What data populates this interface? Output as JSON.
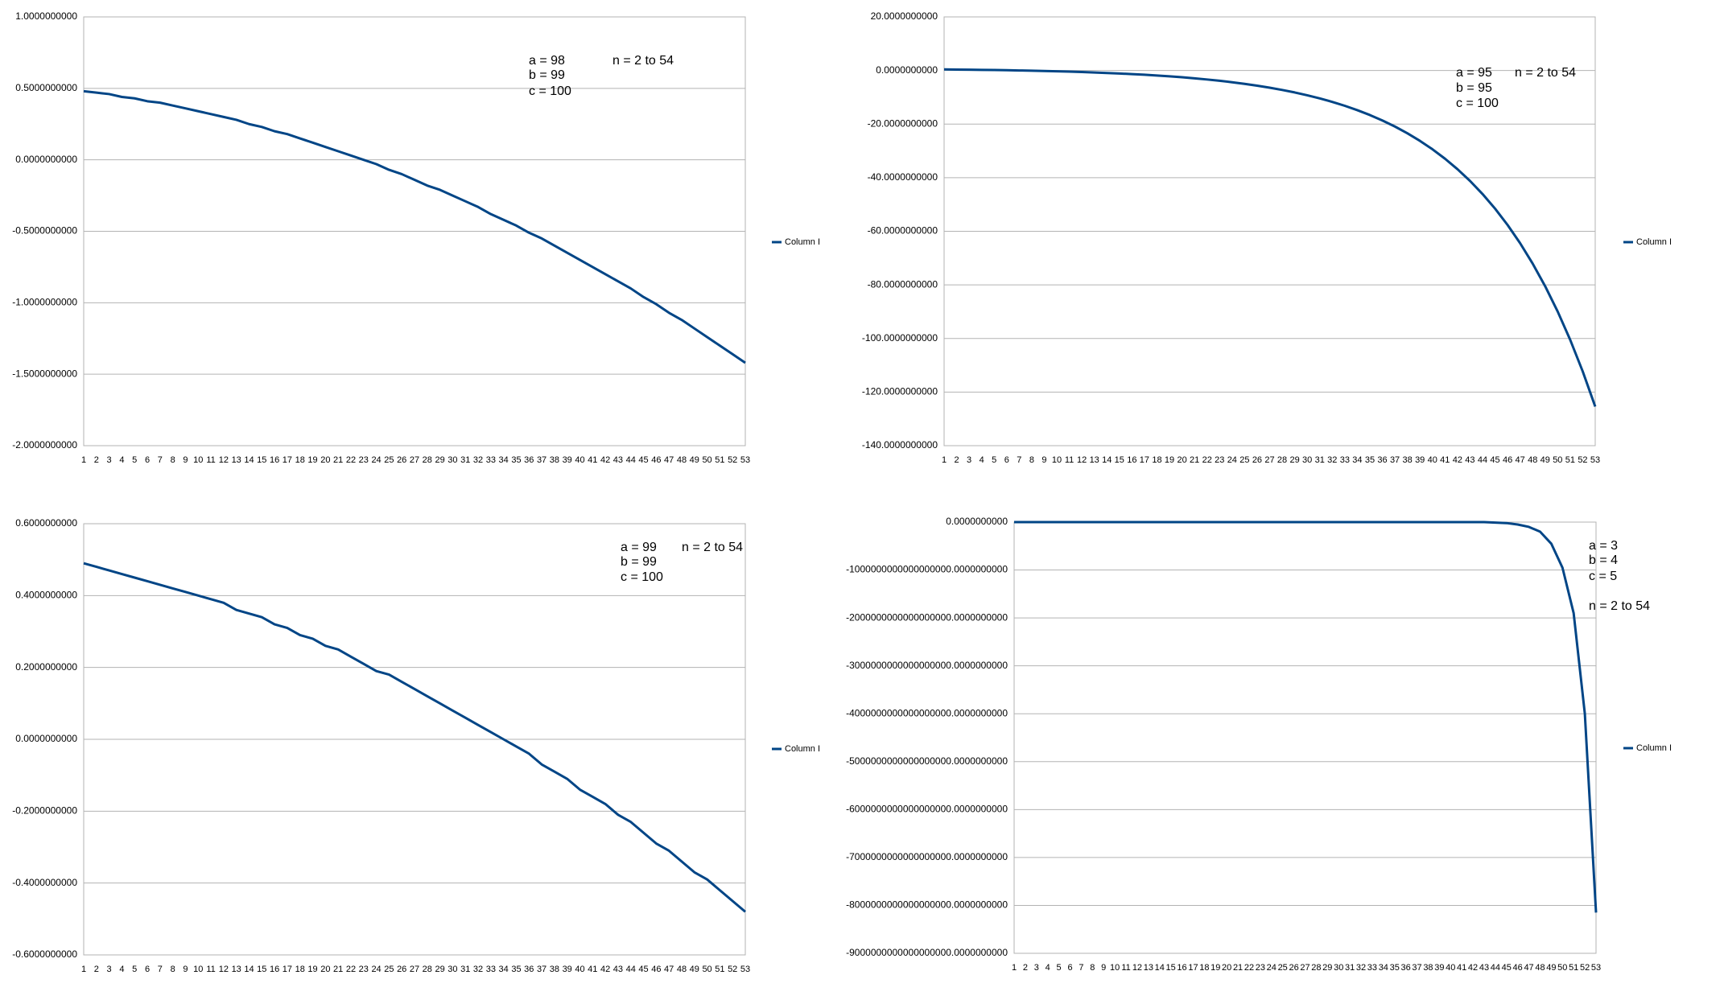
{
  "chart_data": [
    {
      "type": "line",
      "grid": true,
      "legend": "right",
      "annotations": [
        "a = 98",
        "n = 2 to 54",
        "b = 99",
        "c = 100"
      ],
      "categories": [
        1,
        2,
        3,
        4,
        5,
        6,
        7,
        8,
        9,
        10,
        11,
        12,
        13,
        14,
        15,
        16,
        17,
        18,
        19,
        20,
        21,
        22,
        23,
        24,
        25,
        26,
        27,
        28,
        29,
        30,
        31,
        32,
        33,
        34,
        35,
        36,
        37,
        38,
        39,
        40,
        41,
        42,
        43,
        44,
        45,
        46,
        47,
        48,
        49,
        50,
        51,
        52,
        53
      ],
      "ylim": [
        -2,
        1
      ],
      "yticks": [
        {
          "value": -2,
          "label": "-2.0000000000"
        },
        {
          "value": -1.5,
          "label": "-1.5000000000"
        },
        {
          "value": -1,
          "label": "-1.0000000000"
        },
        {
          "value": -0.5,
          "label": "-0.5000000000"
        },
        {
          "value": 0,
          "label": "0.0000000000"
        },
        {
          "value": 0.5,
          "label": "0.5000000000"
        },
        {
          "value": 1,
          "label": "1.0000000000"
        }
      ],
      "series": [
        {
          "name": "Column I",
          "color": "#004586",
          "values": [
            0.48,
            0.47,
            0.46,
            0.44,
            0.43,
            0.41,
            0.4,
            0.38,
            0.36,
            0.34,
            0.32,
            0.3,
            0.28,
            0.25,
            0.23,
            0.2,
            0.18,
            0.15,
            0.12,
            0.09,
            0.06,
            0.03,
            0.0,
            -0.03,
            -0.07,
            -0.1,
            -0.14,
            -0.18,
            -0.21,
            -0.25,
            -0.29,
            -0.33,
            -0.38,
            -0.42,
            -0.46,
            -0.51,
            -0.55,
            -0.6,
            -0.65,
            -0.7,
            -0.75,
            -0.8,
            -0.85,
            -0.9,
            -0.96,
            -1.01,
            -1.07,
            -1.12,
            -1.18,
            -1.24,
            -1.3,
            -1.36,
            -1.42
          ]
        }
      ]
    },
    {
      "type": "line",
      "grid": true,
      "legend": "right",
      "annotations": [
        "a = 95",
        "n = 2 to 54",
        "b = 95",
        "c = 100"
      ],
      "categories": [
        1,
        2,
        3,
        4,
        5,
        6,
        7,
        8,
        9,
        10,
        11,
        12,
        13,
        14,
        15,
        16,
        17,
        18,
        19,
        20,
        21,
        22,
        23,
        24,
        25,
        26,
        27,
        28,
        29,
        30,
        31,
        32,
        33,
        34,
        35,
        36,
        37,
        38,
        39,
        40,
        41,
        42,
        43,
        44,
        45,
        46,
        47,
        48,
        49,
        50,
        51,
        52,
        53
      ],
      "ylim": [
        -140,
        20
      ],
      "yticks": [
        {
          "value": -140,
          "label": "-140.0000000000"
        },
        {
          "value": -120,
          "label": "-120.0000000000"
        },
        {
          "value": -100,
          "label": "-100.0000000000"
        },
        {
          "value": -80,
          "label": "-80.0000000000"
        },
        {
          "value": -60,
          "label": "-60.0000000000"
        },
        {
          "value": -40,
          "label": "-40.0000000000"
        },
        {
          "value": -20,
          "label": "-20.0000000000"
        },
        {
          "value": 0,
          "label": "0.0000000000"
        },
        {
          "value": 20,
          "label": "20.0000000000"
        }
      ],
      "series": [
        {
          "name": "Column I",
          "color": "#004586",
          "values": [
            0.4,
            0.35,
            0.3,
            0.24,
            0.17,
            0.1,
            0.01,
            -0.08,
            -0.18,
            -0.3,
            -0.43,
            -0.57,
            -0.74,
            -0.92,
            -1.12,
            -1.34,
            -1.59,
            -1.87,
            -2.18,
            -2.53,
            -2.92,
            -3.36,
            -3.84,
            -4.38,
            -4.99,
            -5.66,
            -6.42,
            -7.26,
            -8.19,
            -9.24,
            -10.41,
            -11.72,
            -13.17,
            -14.8,
            -16.61,
            -18.64,
            -20.9,
            -23.43,
            -26.25,
            -29.39,
            -32.91,
            -36.83,
            -41.2,
            -46.09,
            -51.54,
            -57.63,
            -64.43,
            -72.02,
            -80.48,
            -89.93,
            -100.49,
            -112.27,
            -125.41
          ]
        }
      ]
    },
    {
      "type": "line",
      "grid": true,
      "legend": "right",
      "annotations": [
        "a = 99",
        "n = 2 to 54",
        "b = 99",
        "c = 100"
      ],
      "categories": [
        1,
        2,
        3,
        4,
        5,
        6,
        7,
        8,
        9,
        10,
        11,
        12,
        13,
        14,
        15,
        16,
        17,
        18,
        19,
        20,
        21,
        22,
        23,
        24,
        25,
        26,
        27,
        28,
        29,
        30,
        31,
        32,
        33,
        34,
        35,
        36,
        37,
        38,
        39,
        40,
        41,
        42,
        43,
        44,
        45,
        46,
        47,
        48,
        49,
        50,
        51,
        52,
        53
      ],
      "ylim": [
        -0.6,
        0.6
      ],
      "yticks": [
        {
          "value": -0.6,
          "label": "-0.6000000000"
        },
        {
          "value": -0.4,
          "label": "-0.4000000000"
        },
        {
          "value": -0.2,
          "label": "-0.2000000000"
        },
        {
          "value": 0,
          "label": "0.0000000000"
        },
        {
          "value": 0.2,
          "label": "0.2000000000"
        },
        {
          "value": 0.4,
          "label": "0.4000000000"
        },
        {
          "value": 0.6,
          "label": "0.6000000000"
        }
      ],
      "series": [
        {
          "name": "Column I",
          "color": "#004586",
          "values": [
            0.49,
            0.48,
            0.47,
            0.46,
            0.45,
            0.44,
            0.43,
            0.42,
            0.41,
            0.4,
            0.39,
            0.38,
            0.36,
            0.35,
            0.34,
            0.32,
            0.31,
            0.29,
            0.28,
            0.26,
            0.25,
            0.23,
            0.21,
            0.19,
            0.18,
            0.16,
            0.14,
            0.12,
            0.1,
            0.08,
            0.06,
            0.04,
            0.02,
            0.0,
            -0.02,
            -0.04,
            -0.07,
            -0.09,
            -0.11,
            -0.14,
            -0.16,
            -0.18,
            -0.21,
            -0.23,
            -0.26,
            -0.29,
            -0.31,
            -0.34,
            -0.37,
            -0.39,
            -0.42,
            -0.45,
            -0.48
          ]
        }
      ]
    },
    {
      "type": "line",
      "grid": true,
      "legend": "right",
      "annotations": [
        "a = 3",
        "b = 4",
        "c = 5",
        "n = 2 to 54"
      ],
      "categories": [
        1,
        2,
        3,
        4,
        5,
        6,
        7,
        8,
        9,
        10,
        11,
        12,
        13,
        14,
        15,
        16,
        17,
        18,
        19,
        20,
        21,
        22,
        23,
        24,
        25,
        26,
        27,
        28,
        29,
        30,
        31,
        32,
        33,
        34,
        35,
        36,
        37,
        38,
        39,
        40,
        41,
        42,
        43,
        44,
        45,
        46,
        47,
        48,
        49,
        50,
        51,
        52,
        53
      ],
      "ylim": [
        -9e+18,
        0
      ],
      "yticks": [
        {
          "value": -9e+18,
          "label": "-9000000000000000000.0000000000"
        },
        {
          "value": -8e+18,
          "label": "-8000000000000000000.0000000000"
        },
        {
          "value": -7e+18,
          "label": "-7000000000000000000.0000000000"
        },
        {
          "value": -6e+18,
          "label": "-6000000000000000000.0000000000"
        },
        {
          "value": -5e+18,
          "label": "-5000000000000000000.0000000000"
        },
        {
          "value": -4e+18,
          "label": "-4000000000000000000.0000000000"
        },
        {
          "value": -3e+18,
          "label": "-3000000000000000000.0000000000"
        },
        {
          "value": -2e+18,
          "label": "-2000000000000000000.0000000000"
        },
        {
          "value": -1e+18,
          "label": "-1000000000000000000.0000000000"
        },
        {
          "value": 0,
          "label": "0.0000000000"
        }
      ],
      "series": [
        {
          "name": "Column I",
          "color": "#004586",
          "values": [
            0,
            0,
            0,
            0,
            0,
            0,
            0,
            0,
            0,
            0,
            0,
            0,
            0,
            0,
            0,
            0,
            0,
            0,
            0,
            0,
            0,
            0,
            0,
            0,
            0,
            0,
            0,
            0,
            0,
            0,
            0,
            0,
            0,
            0,
            0,
            0,
            0,
            0,
            0,
            0,
            0,
            0,
            0,
            -1e+16,
            -2e+16,
            -5e+16,
            -1e+17,
            -2e+17,
            -4.5e+17,
            -9.5e+17,
            -1.9e+18,
            -4e+18,
            -8.15e+18
          ]
        }
      ]
    }
  ]
}
